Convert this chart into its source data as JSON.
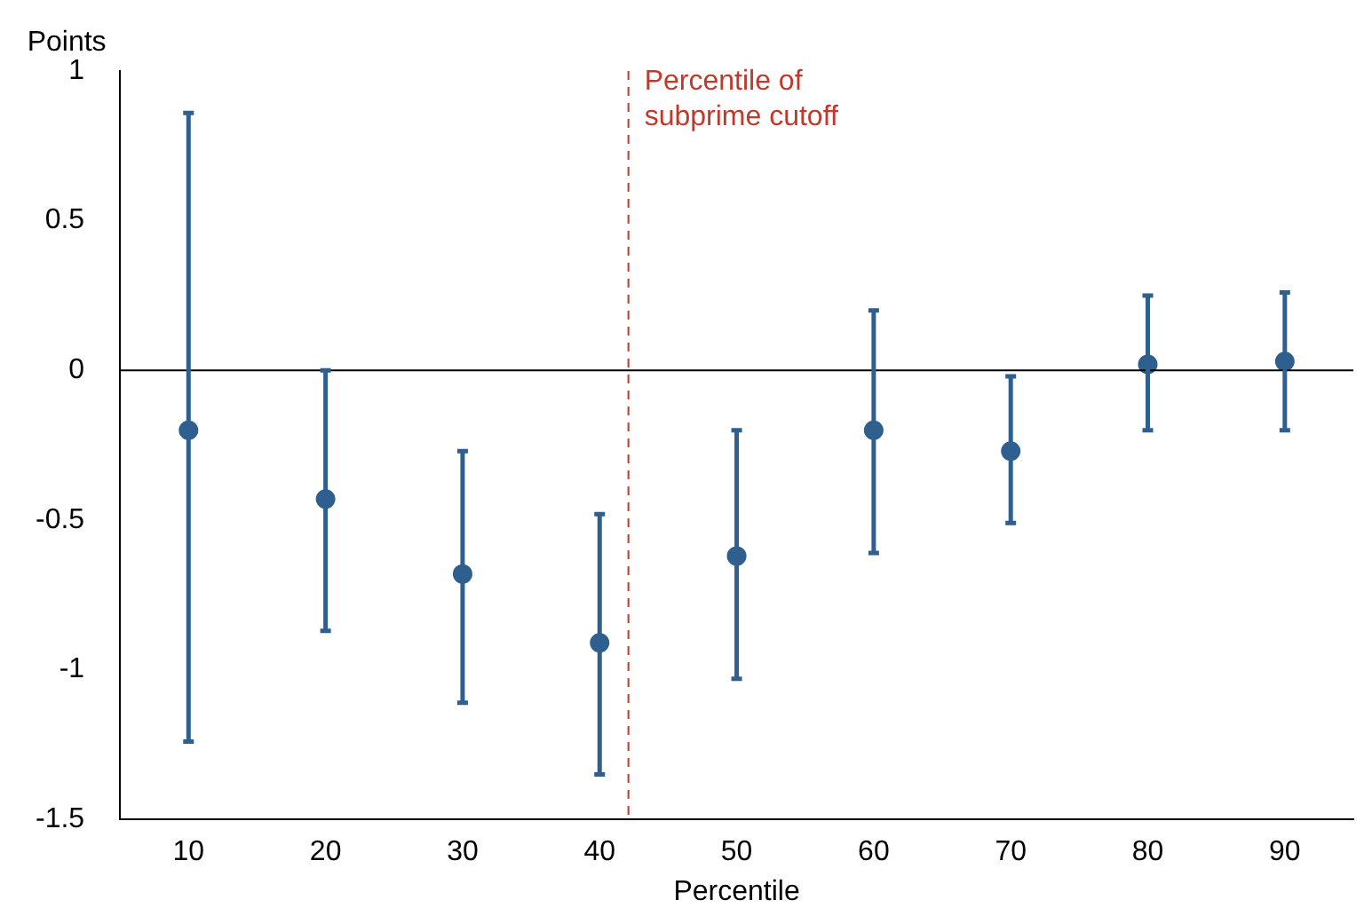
{
  "chart_data": {
    "type": "scatter",
    "xlabel": "Percentile",
    "ylabel": "Points",
    "x": [
      10,
      20,
      30,
      40,
      50,
      60,
      70,
      80,
      90
    ],
    "series": [
      {
        "color": "#2f5f8f",
        "values": [
          -0.2,
          -0.43,
          -0.68,
          -0.91,
          -0.62,
          -0.2,
          -0.27,
          0.02,
          0.03
        ],
        "errors": [
          [
            -1.24,
            0.86
          ],
          [
            -0.87,
            0.0
          ],
          [
            -1.11,
            -0.27
          ],
          [
            -1.35,
            -0.48
          ],
          [
            -1.03,
            -0.2
          ],
          [
            -0.61,
            0.2
          ],
          [
            -0.51,
            -0.02
          ],
          [
            -0.2,
            0.25
          ],
          [
            -0.2,
            0.26
          ]
        ]
      }
    ],
    "xlim": [
      5,
      95
    ],
    "xticks": [
      10,
      20,
      30,
      40,
      50,
      60,
      70,
      80,
      90
    ],
    "ylim": [
      -1.5,
      1
    ],
    "yticks": [
      -1.5,
      -1,
      -0.5,
      0,
      0.5,
      1
    ],
    "ref_lines": [
      {
        "axis": "y",
        "value": 0,
        "color": "#000000",
        "line_style": "solid"
      },
      {
        "axis": "x",
        "value": 42.1,
        "label": "Percentile of subprime cutoff",
        "color": "#c0392b",
        "line_style": "dashed"
      }
    ],
    "marker": "circle",
    "grid": false,
    "legend": false
  }
}
